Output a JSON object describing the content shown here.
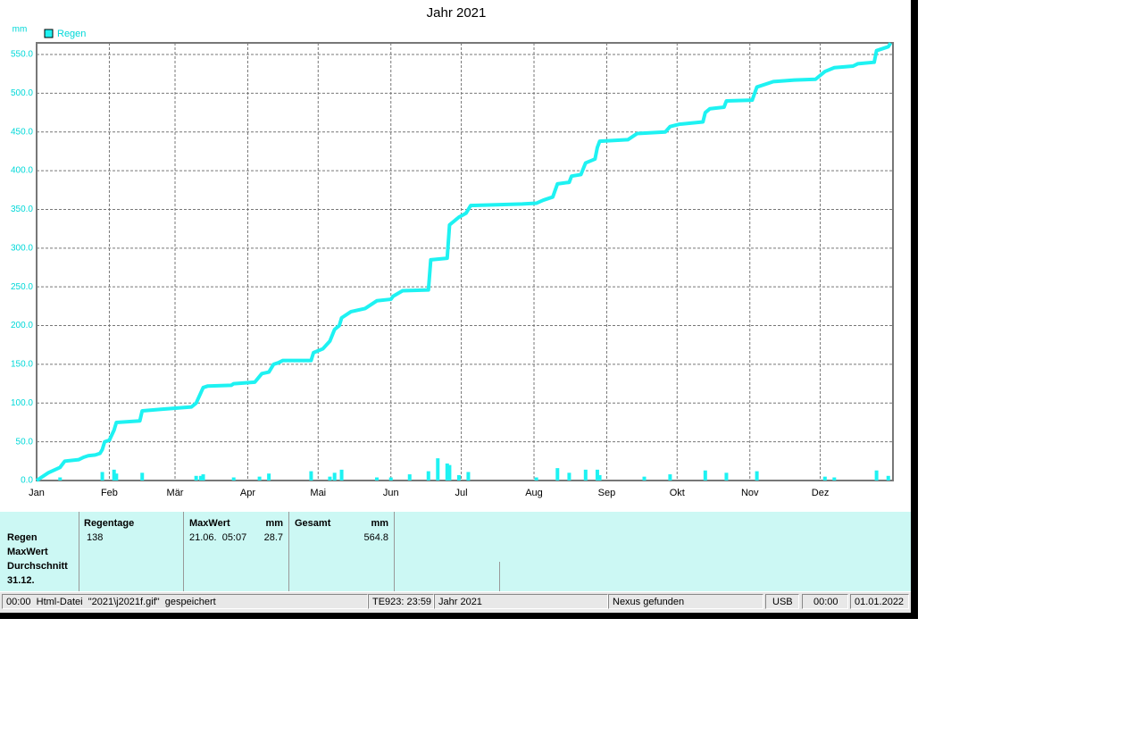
{
  "chart_data": {
    "type": "line",
    "title": "Jahr 2021",
    "y_unit": "mm",
    "grid": true,
    "legend": "top-left",
    "xlim": [
      0,
      365
    ],
    "ylim": [
      0,
      565
    ],
    "xticks": [
      {
        "value": 0,
        "label": "Jan"
      },
      {
        "value": 31,
        "label": "Feb"
      },
      {
        "value": 59,
        "label": "Mär"
      },
      {
        "value": 90,
        "label": "Apr"
      },
      {
        "value": 120,
        "label": "Mai"
      },
      {
        "value": 151,
        "label": "Jun"
      },
      {
        "value": 181,
        "label": "Jul"
      },
      {
        "value": 212,
        "label": "Aug"
      },
      {
        "value": 243,
        "label": "Sep"
      },
      {
        "value": 273,
        "label": "Okt"
      },
      {
        "value": 304,
        "label": "Nov"
      },
      {
        "value": 334,
        "label": "Dez"
      }
    ],
    "yticks": [
      {
        "value": 0,
        "label": "0.0"
      },
      {
        "value": 50,
        "label": "50.0"
      },
      {
        "value": 100,
        "label": "100.0"
      },
      {
        "value": 150,
        "label": "150.0"
      },
      {
        "value": 200,
        "label": "200.0"
      },
      {
        "value": 250,
        "label": "250.0"
      },
      {
        "value": 300,
        "label": "300.0"
      },
      {
        "value": 350,
        "label": "350.0"
      },
      {
        "value": 400,
        "label": "400.0"
      },
      {
        "value": 450,
        "label": "450.0"
      },
      {
        "value": 500,
        "label": "500.0"
      },
      {
        "value": 550,
        "label": "550.0"
      }
    ],
    "series": [
      {
        "name": "Regen",
        "color": "#1ef2f2",
        "x": [
          0,
          5,
          10,
          12,
          18,
          20,
          22,
          25,
          27,
          28,
          29,
          31,
          33,
          34,
          44,
          45,
          53,
          66,
          68,
          71,
          73,
          83,
          84,
          93,
          96,
          99,
          101,
          103,
          105,
          117,
          118,
          122,
          125,
          127,
          129,
          130,
          134,
          140,
          145,
          151,
          152,
          156,
          167,
          168,
          175,
          176,
          180,
          183,
          185,
          207,
          213,
          216,
          220,
          222,
          227,
          228,
          232,
          234,
          238,
          239,
          240,
          252,
          256,
          268,
          270,
          274,
          284,
          285,
          287,
          293,
          294,
          305,
          307,
          311,
          314,
          323,
          332,
          336,
          340,
          348,
          350,
          357,
          358,
          363,
          364
        ],
        "values": [
          0,
          10,
          17,
          25,
          27,
          30,
          32,
          33,
          35,
          40,
          50,
          52,
          65,
          75,
          77,
          90,
          92,
          95,
          100,
          120,
          122,
          123,
          125,
          127,
          138,
          140,
          150,
          152,
          155,
          155,
          165,
          170,
          180,
          195,
          200,
          210,
          218,
          222,
          232,
          234,
          238,
          245,
          246,
          285,
          287,
          330,
          340,
          345,
          355,
          357,
          358,
          362,
          366,
          383,
          385,
          393,
          395,
          410,
          415,
          430,
          438,
          440,
          448,
          450,
          457,
          460,
          463,
          475,
          480,
          482,
          490,
          491,
          508,
          512,
          515,
          517,
          518,
          528,
          533,
          535,
          538,
          540,
          555,
          560,
          564.8
        ]
      },
      {
        "type": "bar",
        "color": "#1ef2f2",
        "x": [
          10,
          28,
          33,
          34,
          45,
          68,
          70,
          71,
          84,
          95,
          99,
          117,
          125,
          127,
          130,
          145,
          151,
          159,
          167,
          171,
          175,
          176,
          180,
          184,
          213,
          222,
          227,
          234,
          239,
          240,
          259,
          270,
          285,
          294,
          307,
          336,
          340,
          358,
          363
        ],
        "values": [
          4,
          11,
          14,
          9,
          10,
          6,
          6,
          8,
          4,
          5,
          9,
          12,
          5,
          10,
          14,
          4,
          4,
          8,
          12,
          28.7,
          22,
          20,
          7,
          11,
          4,
          16,
          10,
          14,
          14,
          7,
          5,
          8,
          13,
          10,
          12,
          5,
          4,
          13,
          6
        ]
      }
    ]
  },
  "panel": {
    "row_labels": [
      "Regen",
      "MaxWert",
      "Durchschnitt",
      "31.12."
    ],
    "regentage": {
      "header": "Regentage",
      "value": "138"
    },
    "maxwert": {
      "header": "MaxWert",
      "unit": "mm",
      "date": "21.06.  05:07",
      "value": "28.7"
    },
    "gesamt": {
      "header": "Gesamt",
      "unit": "mm",
      "value": "564.8"
    }
  },
  "status": [
    "00:00  Html-Datei  \"2021\\j2021f.gif\"  gespeichert",
    "TE923: 23:59",
    "Jahr 2021",
    "Nexus gefunden",
    "USB",
    "00:00",
    "01.01.2022"
  ]
}
